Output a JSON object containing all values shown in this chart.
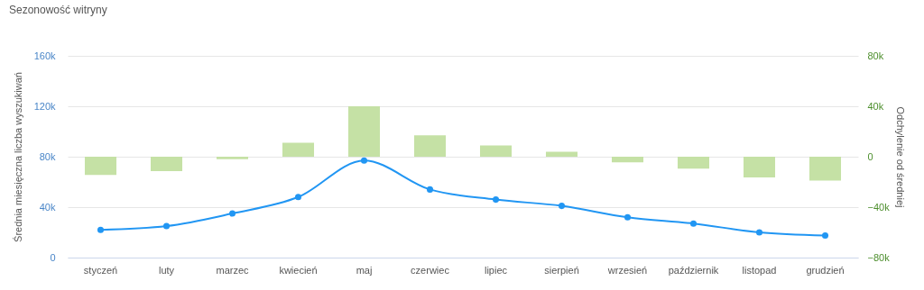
{
  "chart_data": {
    "type": "line",
    "title": "Sezonowość witryny",
    "ylabel": "Średnia miesięczna liczba wyszukiwań",
    "y2label": "Odchylenie od średniej",
    "categories": [
      "styczeń",
      "luty",
      "marzec",
      "kwiecień",
      "maj",
      "czerwiec",
      "lipiec",
      "sierpień",
      "wrzesień",
      "październik",
      "listopad",
      "grudzień"
    ],
    "series": [
      {
        "type": "bar",
        "axis": "y2",
        "color": "#c5e1a5",
        "values": [
          -14500,
          -11500,
          -2000,
          11000,
          40000,
          17000,
          9000,
          4000,
          -4500,
          -9500,
          -16500,
          -19000
        ]
      },
      {
        "color": "#2196f3",
        "values": [
          22000,
          25000,
          35000,
          48000,
          77000,
          54000,
          46000,
          41000,
          32000,
          27000,
          20000,
          17500
        ]
      }
    ],
    "ylim": [
      0,
      160000
    ],
    "yticks": [
      0,
      {
        "value": 40000,
        "label": "40k"
      },
      {
        "value": 80000,
        "label": "80k"
      },
      {
        "value": 120000,
        "label": "120k"
      },
      {
        "value": 160000,
        "label": "160k"
      }
    ],
    "y2lim": [
      -80000,
      80000
    ],
    "y2ticks": [
      {
        "value": -80000,
        "label": "−80k"
      },
      {
        "value": -40000,
        "label": "−40k"
      },
      0,
      {
        "value": 40000,
        "label": "40k"
      },
      {
        "value": 80000,
        "label": "80k"
      }
    ],
    "grid": "y",
    "marker": "circle"
  }
}
